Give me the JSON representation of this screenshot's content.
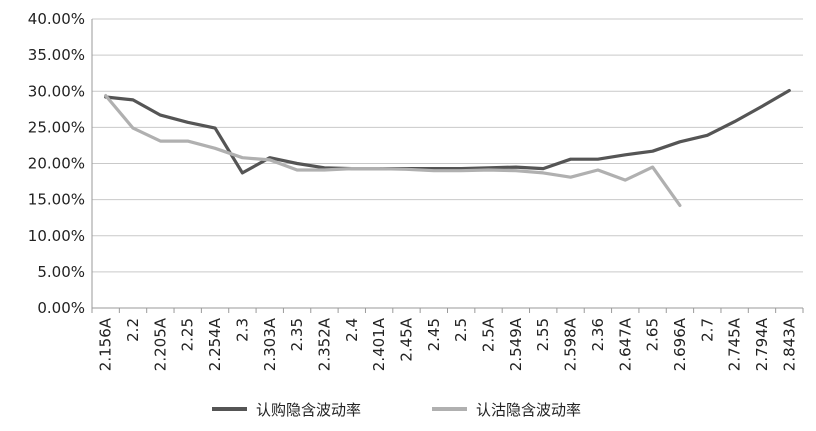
{
  "chart_data": {
    "type": "line",
    "categories": [
      "2.156A",
      "2.2",
      "2.205A",
      "2.25",
      "2.254A",
      "2.3",
      "2.303A",
      "2.35",
      "2.352A",
      "2.4",
      "2.401A",
      "2.45A",
      "2.45",
      "2.5",
      "2.5A",
      "2.549A",
      "2.55",
      "2.598A",
      "2.36",
      "2.647A",
      "2.65",
      "2.696A",
      "2.7",
      "2.745A",
      "2.794A",
      "2.843A"
    ],
    "y_ticks": [
      "0.00%",
      "5.00%",
      "10.00%",
      "15.00%",
      "20.00%",
      "25.00%",
      "30.00%",
      "35.00%",
      "40.00%"
    ],
    "ylim": [
      0,
      40
    ],
    "grid": "horizontal",
    "legend_position": "bottom",
    "series": [
      {
        "name": "认购隐含波动率",
        "color": "#555555",
        "values": [
          29.2,
          28.8,
          26.7,
          25.7,
          24.9,
          18.7,
          20.8,
          20.0,
          19.4,
          19.3,
          19.3,
          19.3,
          19.3,
          19.3,
          19.4,
          19.5,
          19.3,
          20.6,
          20.6,
          21.2,
          21.7,
          23.0,
          23.9,
          25.8,
          27.9,
          30.1
        ]
      },
      {
        "name": "认沽隐含波动率",
        "color": "#b0b0b0",
        "values": [
          29.4,
          24.9,
          23.1,
          23.1,
          22.1,
          20.8,
          20.5,
          19.1,
          19.1,
          19.3,
          19.3,
          19.2,
          19.0,
          19.0,
          19.1,
          19.0,
          18.7,
          18.1,
          19.1,
          17.7,
          19.5,
          14.2,
          null,
          null,
          null,
          null
        ]
      }
    ]
  }
}
